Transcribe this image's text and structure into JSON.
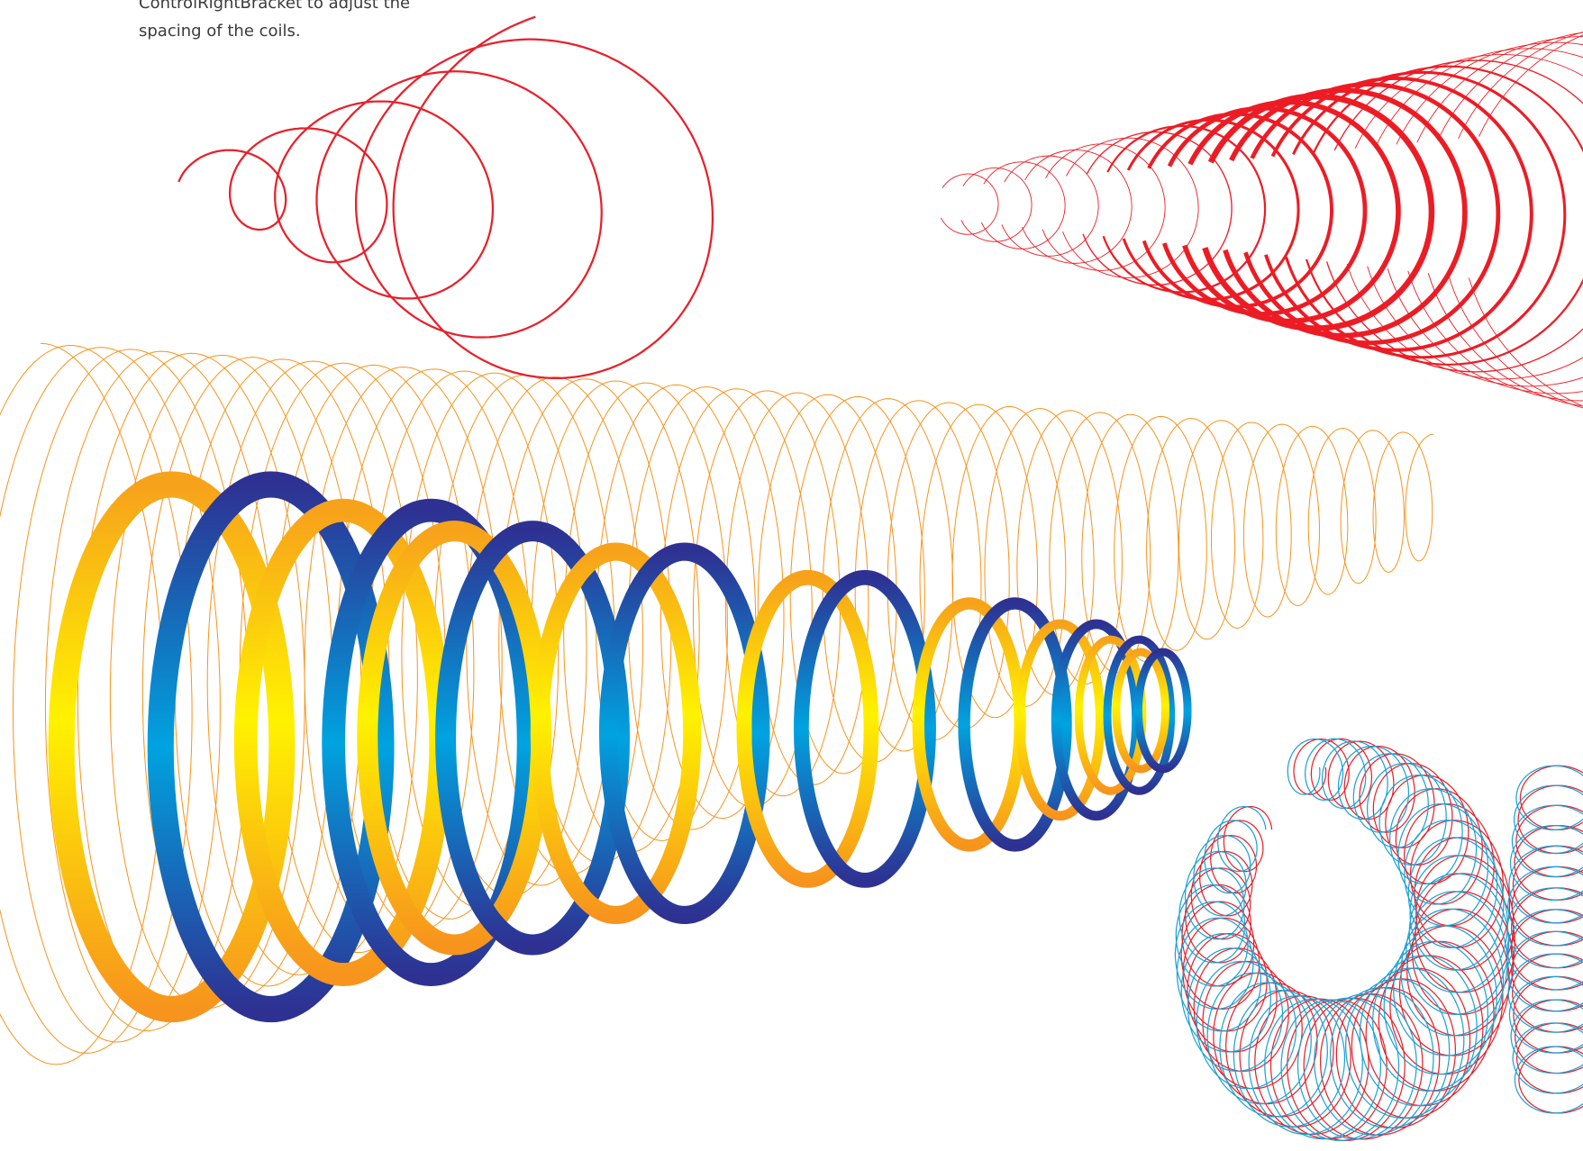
{
  "caption": {
    "lines": [
      "ControlRightBracket to adjust the",
      "spacing of the coils."
    ]
  }
}
